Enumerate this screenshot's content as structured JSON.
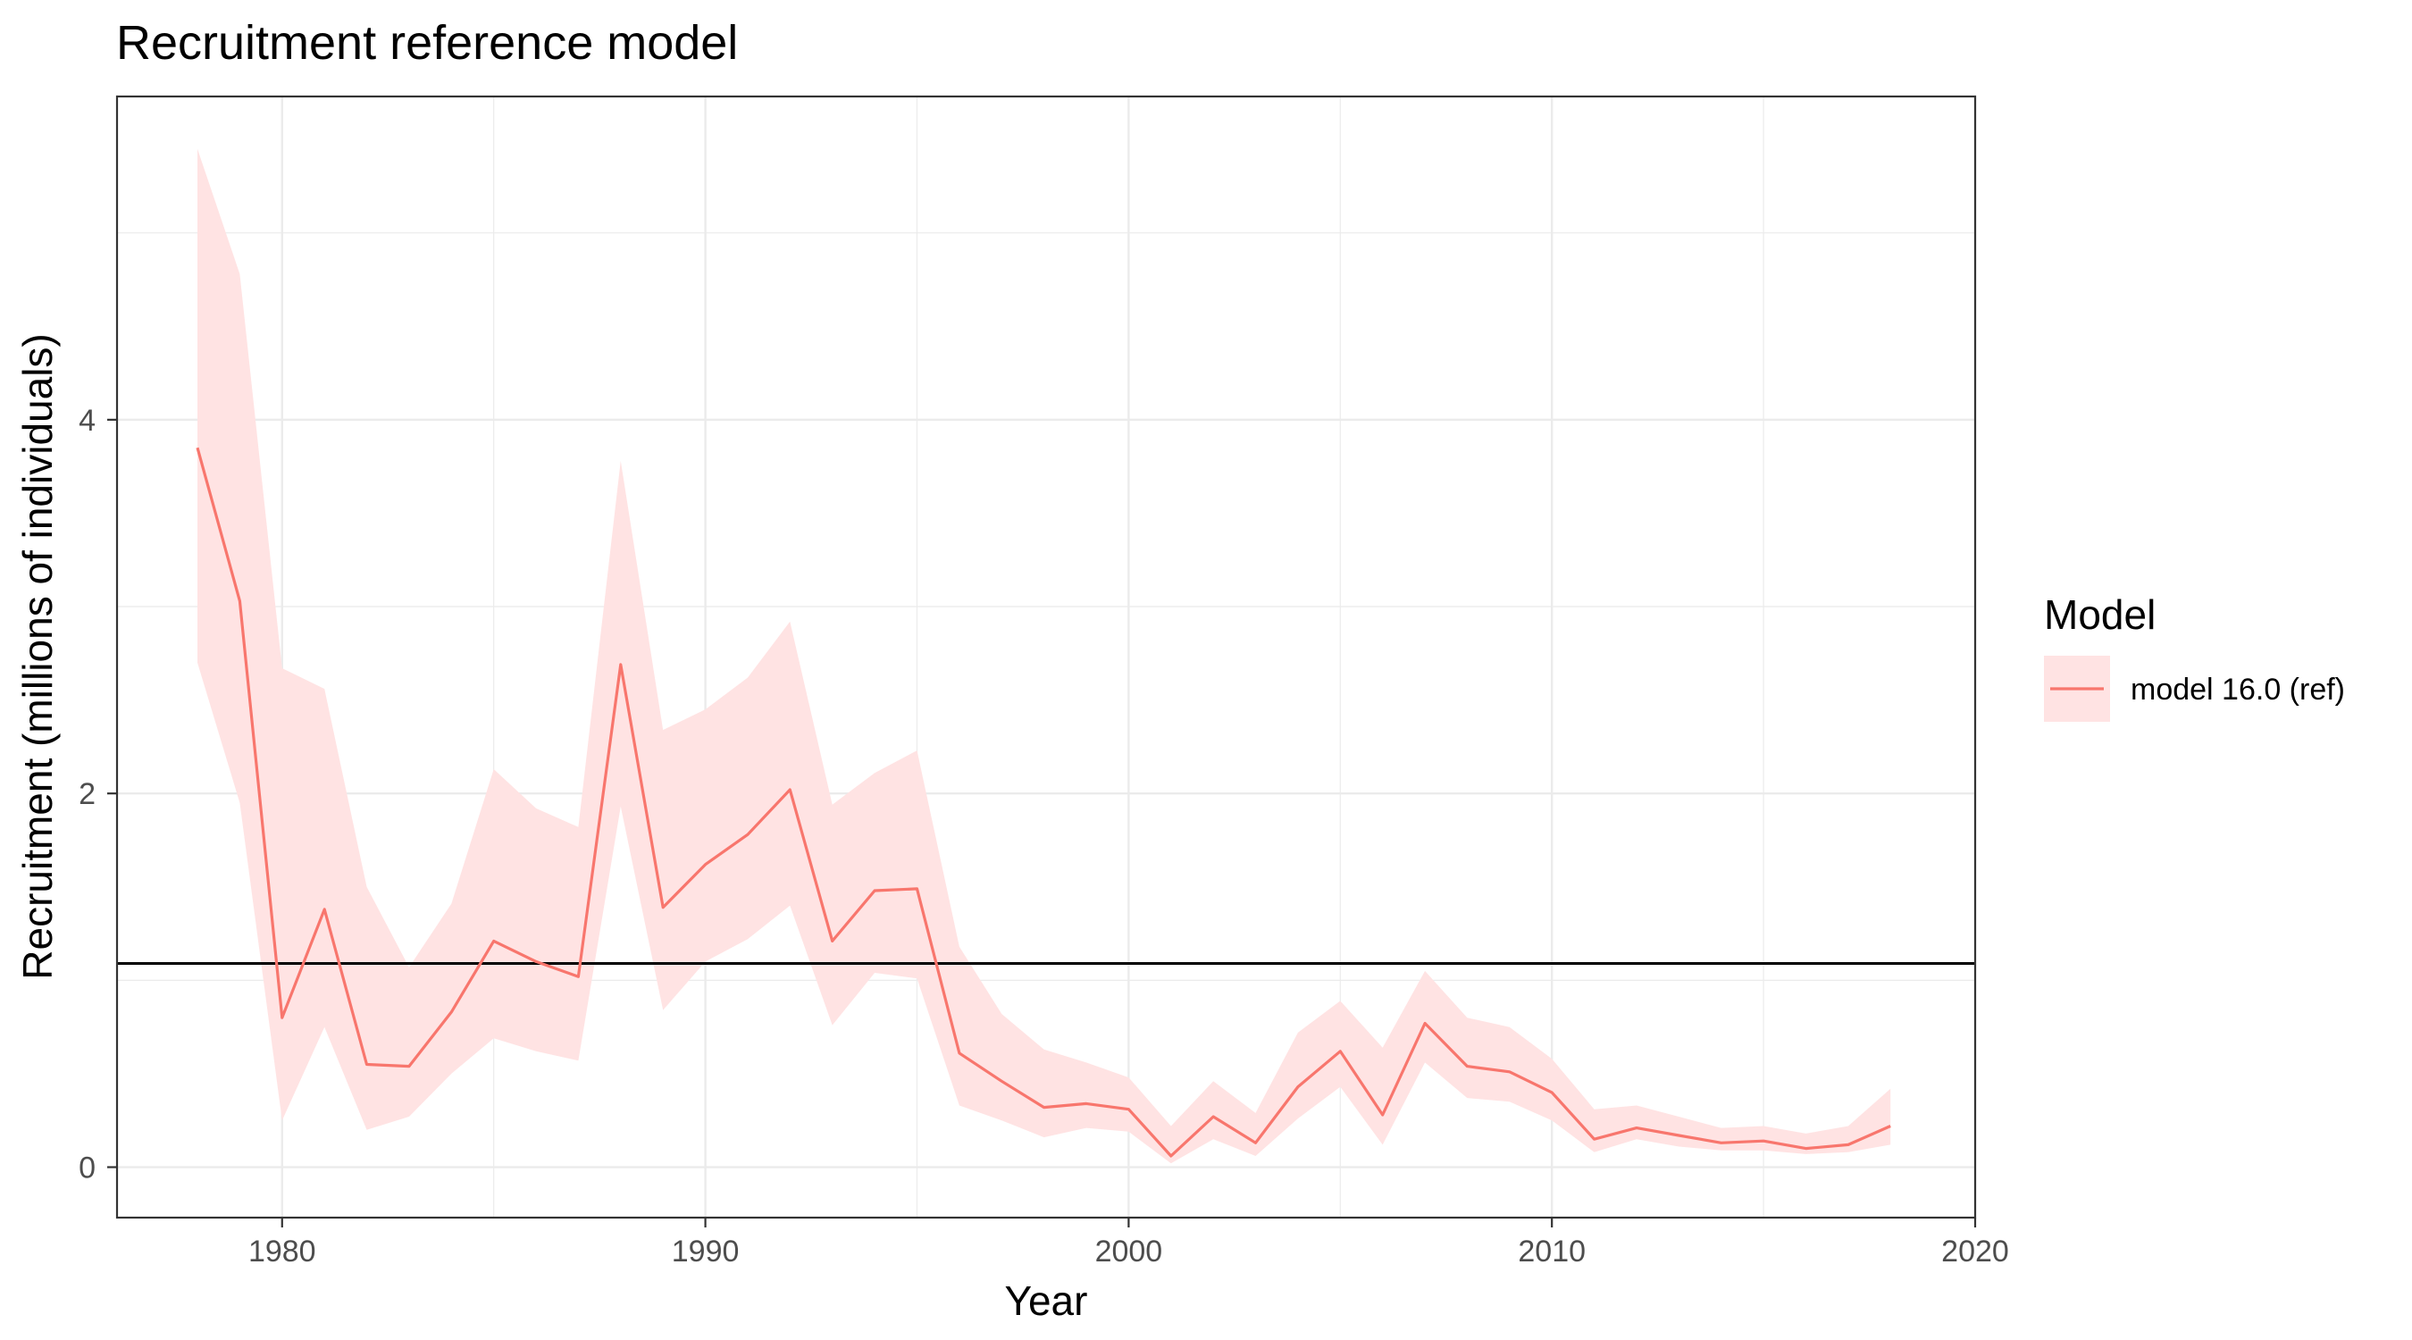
{
  "chart_data": {
    "type": "line",
    "title": "Recruitment reference model",
    "xlabel": "Year",
    "ylabel": "Recruitment (millions of individuals)",
    "xlim": [
      1976.1,
      2020
    ],
    "ylim": [
      -0.27,
      5.73
    ],
    "x_ticks": [
      1980,
      1990,
      2000,
      2010,
      2020
    ],
    "y_ticks": [
      0,
      2,
      4
    ],
    "grid": true,
    "legend": {
      "title": "Model",
      "position": "right"
    },
    "reference_line": {
      "y": 1.09,
      "color": "#000000"
    },
    "series": [
      {
        "name": "model 16.0 (ref)",
        "color": "#F8766D",
        "band_color": "#FFE3E3",
        "x": [
          1978,
          1979,
          1980,
          1981,
          1982,
          1983,
          1984,
          1985,
          1986,
          1987,
          1988,
          1989,
          1990,
          1991,
          1992,
          1993,
          1994,
          1995,
          1996,
          1997,
          1998,
          1999,
          2000,
          2001,
          2002,
          2003,
          2004,
          2005,
          2006,
          2007,
          2008,
          2009,
          2010,
          2011,
          2012,
          2013,
          2014,
          2015,
          2016,
          2017,
          2018
        ],
        "y": [
          3.85,
          3.03,
          0.8,
          1.38,
          0.55,
          0.54,
          0.83,
          1.21,
          1.1,
          1.02,
          2.69,
          1.39,
          1.62,
          1.78,
          2.02,
          1.21,
          1.48,
          1.49,
          0.61,
          0.46,
          0.32,
          0.34,
          0.31,
          0.06,
          0.27,
          0.13,
          0.43,
          0.62,
          0.28,
          0.77,
          0.54,
          0.51,
          0.4,
          0.15,
          0.21,
          0.17,
          0.13,
          0.14,
          0.1,
          0.12,
          0.22
        ],
        "lower": [
          2.7,
          1.95,
          0.25,
          0.75,
          0.2,
          0.27,
          0.5,
          0.69,
          0.62,
          0.57,
          1.93,
          0.84,
          1.1,
          1.22,
          1.4,
          0.76,
          1.04,
          1.01,
          0.33,
          0.25,
          0.16,
          0.21,
          0.19,
          0.02,
          0.15,
          0.06,
          0.26,
          0.43,
          0.12,
          0.56,
          0.37,
          0.35,
          0.25,
          0.08,
          0.15,
          0.11,
          0.09,
          0.09,
          0.07,
          0.08,
          0.12
        ],
        "upper": [
          5.45,
          4.78,
          2.67,
          2.56,
          1.5,
          1.07,
          1.41,
          2.13,
          1.92,
          1.82,
          3.78,
          2.34,
          2.45,
          2.62,
          2.92,
          1.94,
          2.11,
          2.23,
          1.18,
          0.82,
          0.63,
          0.56,
          0.48,
          0.22,
          0.46,
          0.29,
          0.72,
          0.89,
          0.64,
          1.05,
          0.8,
          0.75,
          0.58,
          0.31,
          0.33,
          0.27,
          0.21,
          0.22,
          0.18,
          0.22,
          0.42
        ]
      }
    ]
  }
}
